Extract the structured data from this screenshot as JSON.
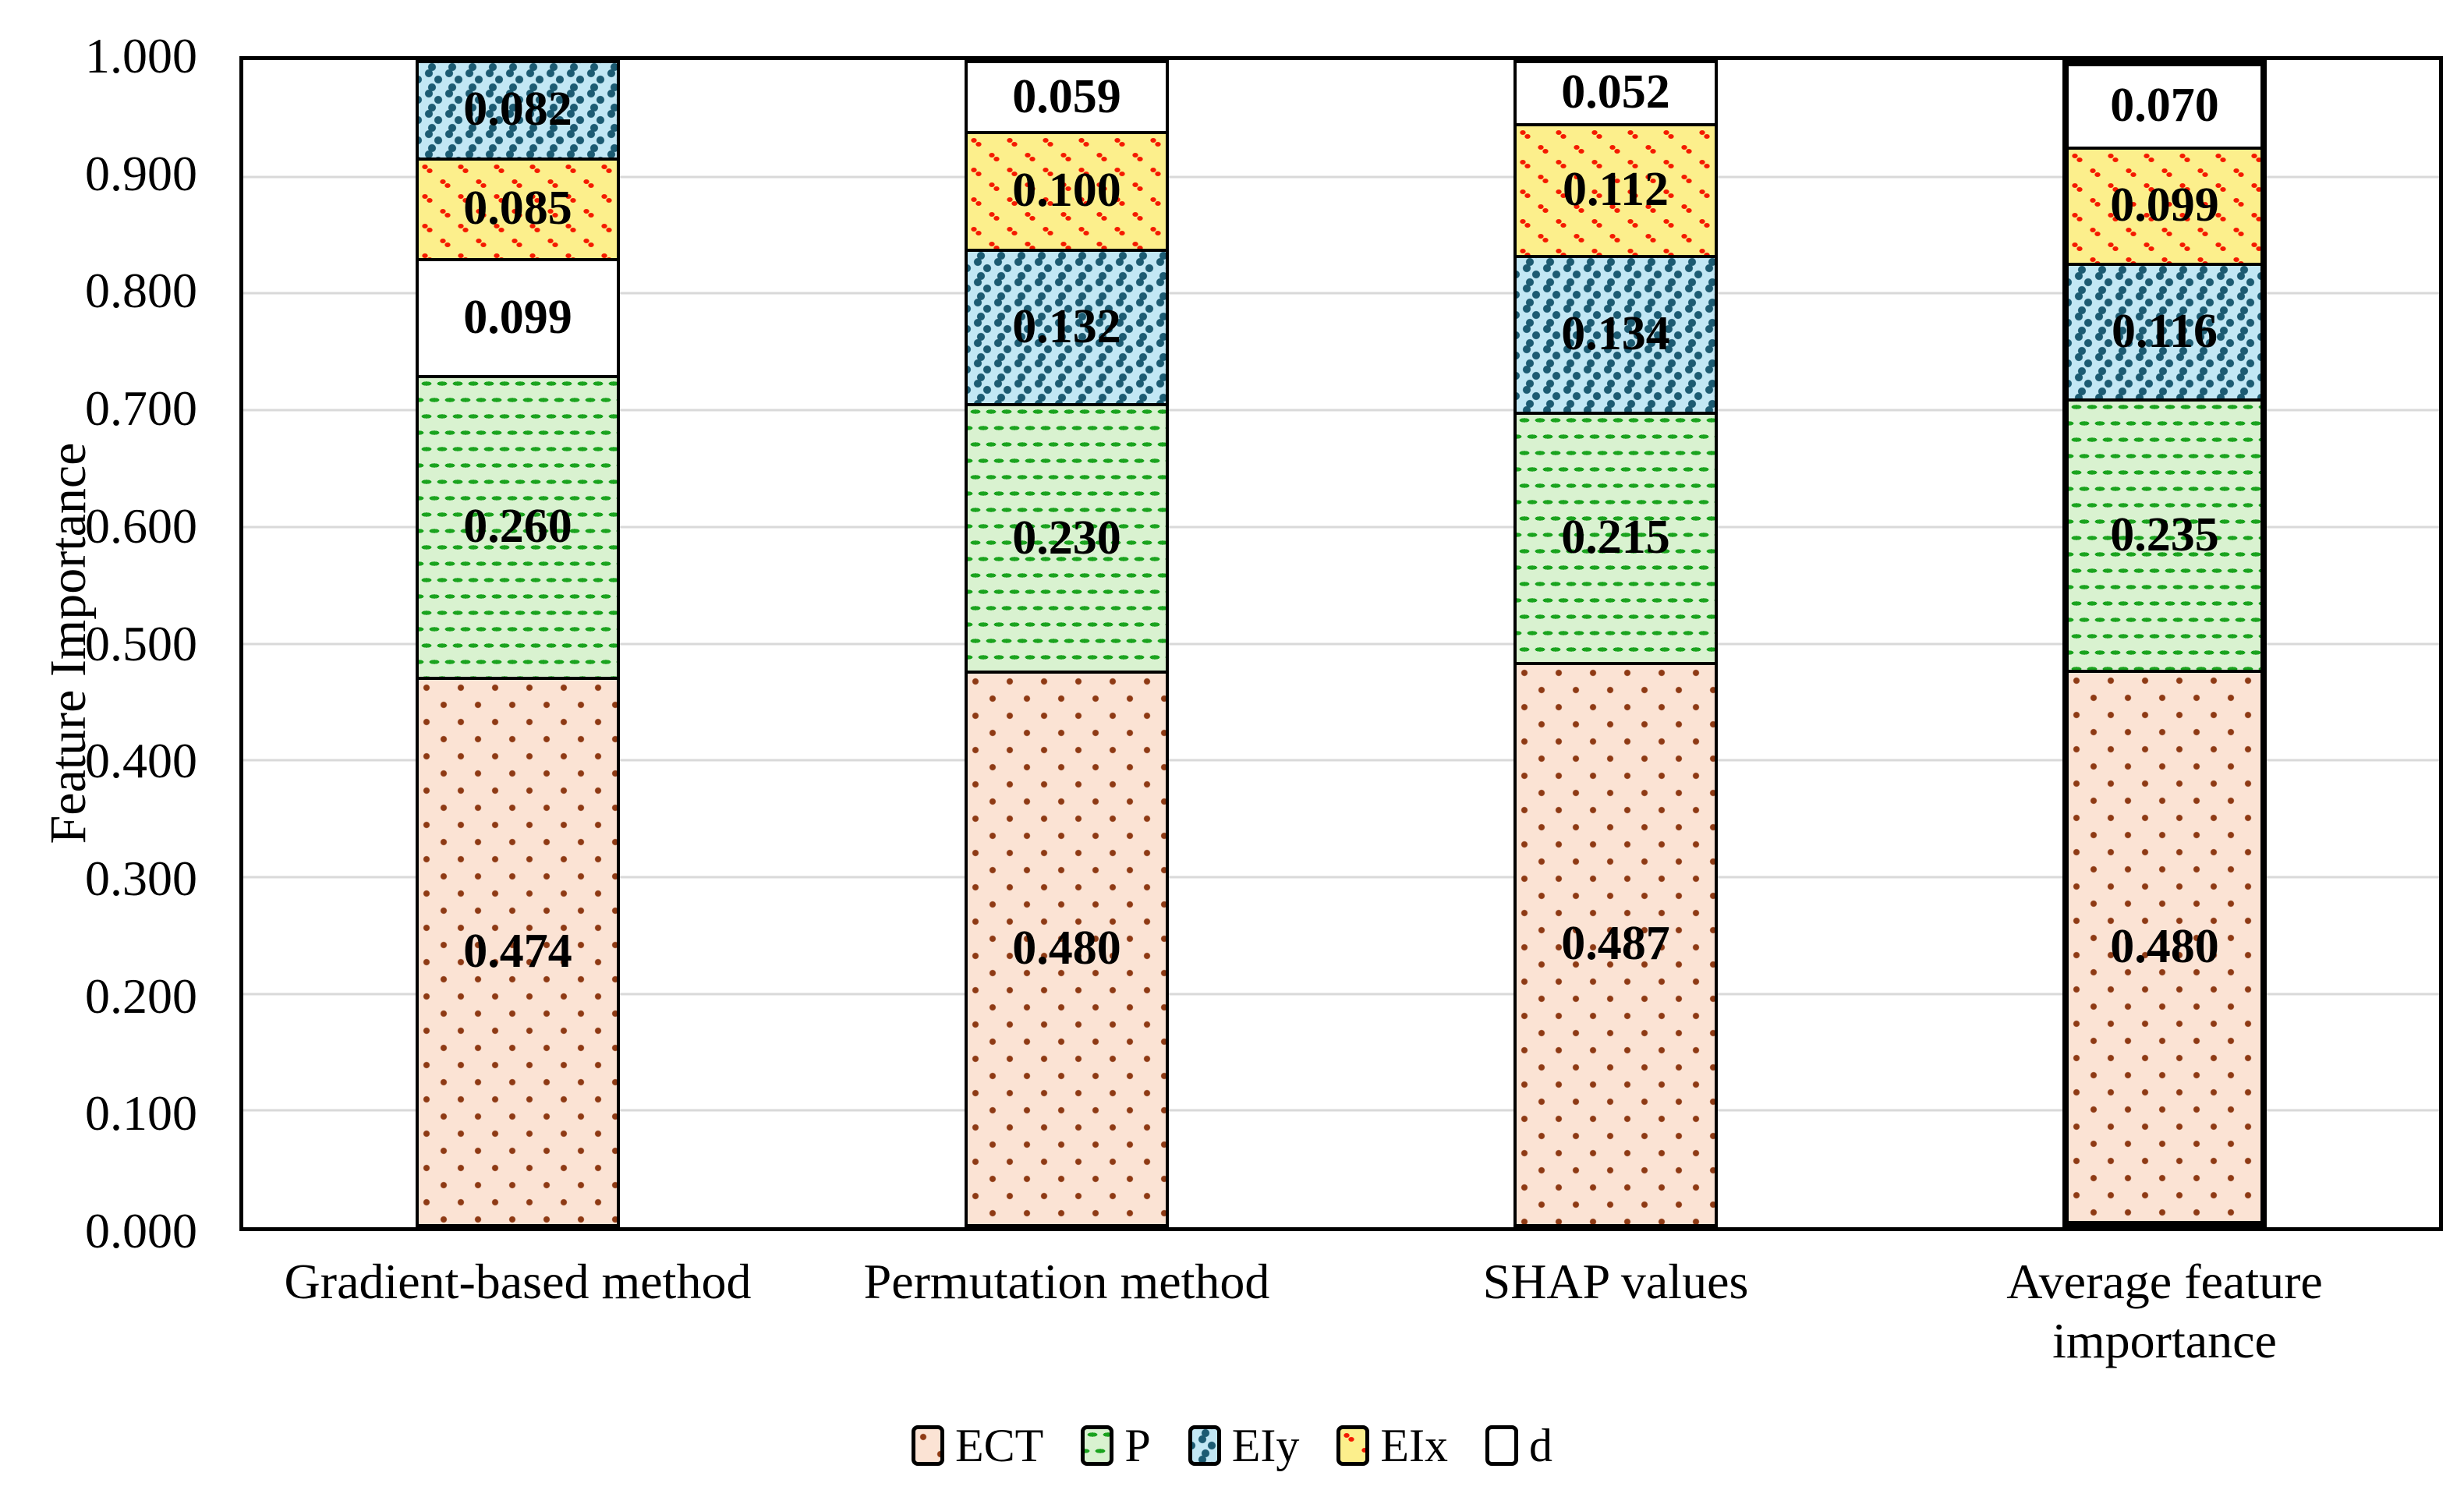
{
  "chart_data": {
    "type": "bar",
    "stacked": true,
    "title": "",
    "xlabel": "",
    "ylabel": "Feature Importance",
    "ylim": [
      0,
      1
    ],
    "ytick_step": 0.1,
    "yticks": [
      "0.000",
      "0.100",
      "0.200",
      "0.300",
      "0.400",
      "0.500",
      "0.600",
      "0.700",
      "0.800",
      "0.900",
      "1.000"
    ],
    "grid": true,
    "legend_position": "bottom",
    "categories": [
      "Gradient-based method",
      "Permutation method",
      "SHAP values",
      "Average feature importance"
    ],
    "series": [
      {
        "name": "ECT",
        "values": [
          0.474,
          0.48,
          0.487,
          0.48
        ]
      },
      {
        "name": "P",
        "values": [
          0.26,
          0.23,
          0.215,
          0.235
        ]
      },
      {
        "name": "EIy",
        "values": [
          0.082,
          0.132,
          0.134,
          0.116
        ]
      },
      {
        "name": "EIx",
        "values": [
          0.085,
          0.1,
          0.112,
          0.099
        ]
      },
      {
        "name": "d",
        "values": [
          0.099,
          0.059,
          0.052,
          0.07
        ]
      }
    ],
    "bars": [
      {
        "category": "Gradient-based method",
        "emphasis": false,
        "segments": [
          {
            "series": "ECT",
            "value": 0.474,
            "label": "0.474"
          },
          {
            "series": "P",
            "value": 0.26,
            "label": "0.260"
          },
          {
            "series": "d",
            "value": 0.099,
            "label": "0.099"
          },
          {
            "series": "EIx",
            "value": 0.085,
            "label": "0.085"
          },
          {
            "series": "EIy",
            "value": 0.082,
            "label": "0.082"
          }
        ]
      },
      {
        "category": "Permutation method",
        "emphasis": false,
        "segments": [
          {
            "series": "ECT",
            "value": 0.48,
            "label": "0.480"
          },
          {
            "series": "P",
            "value": 0.23,
            "label": "0.230"
          },
          {
            "series": "EIy",
            "value": 0.132,
            "label": "0.132"
          },
          {
            "series": "EIx",
            "value": 0.1,
            "label": "0.100"
          },
          {
            "series": "d",
            "value": 0.059,
            "label": "0.059"
          }
        ]
      },
      {
        "category": "SHAP values",
        "emphasis": false,
        "segments": [
          {
            "series": "ECT",
            "value": 0.487,
            "label": "0.487"
          },
          {
            "series": "P",
            "value": 0.215,
            "label": "0.215"
          },
          {
            "series": "EIy",
            "value": 0.134,
            "label": "0.134"
          },
          {
            "series": "EIx",
            "value": 0.112,
            "label": "0.112"
          },
          {
            "series": "d",
            "value": 0.052,
            "label": "0.052"
          }
        ]
      },
      {
        "category": "Average feature importance",
        "emphasis": true,
        "segments": [
          {
            "series": "ECT",
            "value": 0.48,
            "label": "0.480"
          },
          {
            "series": "P",
            "value": 0.235,
            "label": "0.235"
          },
          {
            "series": "EIy",
            "value": 0.116,
            "label": "0.116"
          },
          {
            "series": "EIx",
            "value": 0.099,
            "label": "0.099"
          },
          {
            "series": "d",
            "value": 0.07,
            "label": "0.070"
          }
        ]
      }
    ],
    "legend": [
      {
        "name": "ECT",
        "pattern": "ect"
      },
      {
        "name": "P",
        "pattern": "p"
      },
      {
        "name": "EIy",
        "pattern": "eiy"
      },
      {
        "name": "EIx",
        "pattern": "eix"
      },
      {
        "name": "d",
        "pattern": "d"
      }
    ],
    "colors": {
      "ect_bg": "#FBE3D4",
      "ect_dot": "#8E3A14",
      "p_bg": "#D9F2D0",
      "p_dash": "#1AA31E",
      "eiy_bg": "#C2E7F4",
      "eiy_dot": "#1C5B72",
      "eix_bg": "#FCEF8C",
      "eix_dot": "#F41A00",
      "d_bg": "#FFFFFF",
      "grid": "#D9D9D9",
      "axis": "#000000",
      "text": "#000000"
    }
  }
}
